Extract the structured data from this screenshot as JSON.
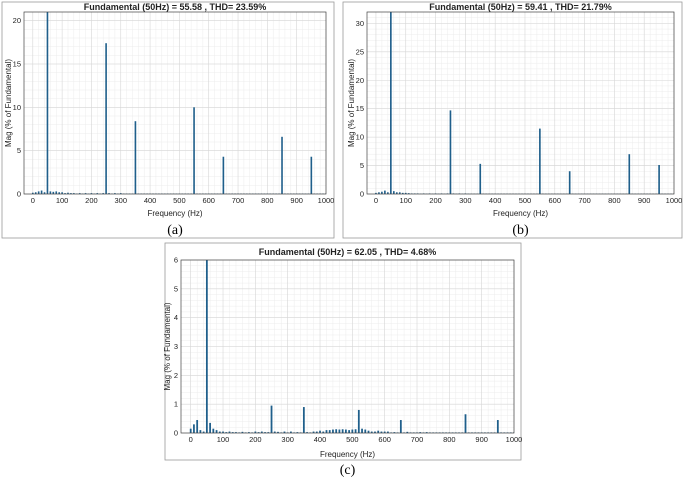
{
  "chart_data": [
    {
      "type": "bar",
      "panel_label": "(a)",
      "title": "Fundamental (50Hz) = 55.58 , THD= 23.59%",
      "xlabel": "Frequency (Hz)",
      "ylabel": "Mag (% of Fundamental)",
      "xlim": [
        -30,
        1000
      ],
      "ylim": [
        0,
        21
      ],
      "xticks": [
        0,
        100,
        200,
        300,
        400,
        500,
        600,
        700,
        800,
        900,
        1000
      ],
      "yticks": [
        0,
        5,
        10,
        15,
        20
      ],
      "grid": true,
      "bar_color": "#1f5f8b",
      "x": [
        0,
        10,
        20,
        30,
        40,
        50,
        60,
        70,
        80,
        90,
        100,
        110,
        120,
        130,
        140,
        150,
        160,
        170,
        180,
        190,
        200,
        210,
        220,
        230,
        240,
        250,
        260,
        270,
        280,
        290,
        300,
        310,
        320,
        330,
        340,
        350,
        360,
        370,
        380,
        390,
        400,
        410,
        420,
        430,
        440,
        450,
        460,
        470,
        480,
        490,
        500,
        510,
        520,
        530,
        540,
        550,
        560,
        570,
        580,
        590,
        600,
        610,
        620,
        630,
        640,
        650,
        660,
        670,
        680,
        690,
        700,
        710,
        720,
        730,
        740,
        750,
        760,
        770,
        780,
        790,
        800,
        810,
        820,
        830,
        840,
        850,
        860,
        870,
        880,
        890,
        900,
        910,
        920,
        930,
        940,
        950,
        960,
        970,
        980,
        990,
        1000
      ],
      "values": [
        0.15,
        0.2,
        0.3,
        0.4,
        0.2,
        21.5,
        0.3,
        0.25,
        0.3,
        0.2,
        0.2,
        0.1,
        0.15,
        0.1,
        0.1,
        0.05,
        0.1,
        0.05,
        0.1,
        0.05,
        0.1,
        0.05,
        0.1,
        0.05,
        0.1,
        17.4,
        0.1,
        0.05,
        0.1,
        0.05,
        0.1,
        0.05,
        0.05,
        0.05,
        0.05,
        8.4,
        0.05,
        0.05,
        0.05,
        0.05,
        0.05,
        0.05,
        0.05,
        0.05,
        0.05,
        0.05,
        0.05,
        0.05,
        0.05,
        0.05,
        0.05,
        0.05,
        0.05,
        0.05,
        0.05,
        10.0,
        0.05,
        0.05,
        0.05,
        0.05,
        0.05,
        0.05,
        0.05,
        0.05,
        0.05,
        4.3,
        0.05,
        0.05,
        0.05,
        0.05,
        0.05,
        0.05,
        0.05,
        0.05,
        0.05,
        0.05,
        0.05,
        0.05,
        0.05,
        0.05,
        0.05,
        0.05,
        0.05,
        0.05,
        0.05,
        6.6,
        0.05,
        0.05,
        0.05,
        0.05,
        0.05,
        0.05,
        0.05,
        0.05,
        0.05,
        4.3,
        0.05,
        0.05,
        0.05,
        0.05,
        0.05
      ]
    },
    {
      "type": "bar",
      "panel_label": "(b)",
      "title": "Fundamental (50Hz) = 59.41 , THD= 21.79%",
      "xlabel": "Frequency (Hz)",
      "ylabel": "Mag (% of Fundamental)",
      "xlim": [
        -30,
        1000
      ],
      "ylim": [
        0,
        32
      ],
      "xticks": [
        0,
        100,
        200,
        300,
        400,
        500,
        600,
        700,
        800,
        900,
        1000
      ],
      "yticks": [
        0,
        5,
        10,
        15,
        20,
        25,
        30
      ],
      "grid": true,
      "bar_color": "#1f5f8b",
      "x": [
        0,
        10,
        20,
        30,
        40,
        50,
        60,
        70,
        80,
        90,
        100,
        110,
        120,
        130,
        140,
        150,
        160,
        170,
        180,
        190,
        200,
        210,
        220,
        230,
        240,
        250,
        260,
        270,
        280,
        290,
        300,
        310,
        320,
        330,
        340,
        350,
        360,
        370,
        380,
        390,
        400,
        410,
        420,
        430,
        440,
        450,
        460,
        470,
        480,
        490,
        500,
        510,
        520,
        530,
        540,
        550,
        560,
        570,
        580,
        590,
        600,
        610,
        620,
        630,
        640,
        650,
        660,
        670,
        680,
        690,
        700,
        710,
        720,
        730,
        740,
        750,
        760,
        770,
        780,
        790,
        800,
        810,
        820,
        830,
        840,
        850,
        860,
        870,
        880,
        890,
        900,
        910,
        920,
        930,
        940,
        950,
        960,
        970,
        980,
        990,
        1000
      ],
      "values": [
        0.2,
        0.3,
        0.4,
        0.6,
        0.3,
        32.5,
        0.5,
        0.3,
        0.3,
        0.2,
        0.2,
        0.15,
        0.1,
        0.1,
        0.1,
        0.05,
        0.1,
        0.05,
        0.1,
        0.05,
        0.1,
        0.05,
        0.1,
        0.05,
        0.1,
        14.7,
        0.1,
        0.05,
        0.1,
        0.05,
        0.1,
        0.05,
        0.05,
        0.05,
        0.05,
        5.3,
        0.05,
        0.05,
        0.05,
        0.05,
        0.05,
        0.05,
        0.05,
        0.05,
        0.05,
        0.05,
        0.05,
        0.05,
        0.05,
        0.05,
        0.05,
        0.05,
        0.05,
        0.05,
        0.05,
        11.5,
        0.05,
        0.05,
        0.05,
        0.05,
        0.05,
        0.05,
        0.05,
        0.05,
        0.05,
        4.0,
        0.05,
        0.05,
        0.05,
        0.05,
        0.05,
        0.05,
        0.05,
        0.05,
        0.05,
        0.05,
        0.05,
        0.05,
        0.05,
        0.05,
        0.05,
        0.05,
        0.05,
        0.05,
        0.05,
        7.0,
        0.05,
        0.05,
        0.05,
        0.05,
        0.05,
        0.05,
        0.05,
        0.05,
        0.05,
        5.1,
        0.05,
        0.05,
        0.05,
        0.05,
        0.05
      ]
    },
    {
      "type": "bar",
      "panel_label": "(c)",
      "title": "Fundamental (50Hz) = 62.05 , THD= 4.68%",
      "xlabel": "Frequency (Hz)",
      "ylabel": "Mag (% of Fundamental)",
      "xlim": [
        -30,
        1000
      ],
      "ylim": [
        0,
        6
      ],
      "xticks": [
        0,
        100,
        200,
        300,
        400,
        500,
        600,
        700,
        800,
        900,
        1000
      ],
      "yticks": [
        0,
        1,
        2,
        3,
        4,
        5,
        6
      ],
      "grid": true,
      "bar_color": "#1f5f8b",
      "x": [
        0,
        10,
        20,
        30,
        40,
        50,
        60,
        70,
        80,
        90,
        100,
        110,
        120,
        130,
        140,
        150,
        160,
        170,
        180,
        190,
        200,
        210,
        220,
        230,
        240,
        250,
        260,
        270,
        280,
        290,
        300,
        310,
        320,
        330,
        340,
        350,
        360,
        370,
        380,
        390,
        400,
        410,
        420,
        430,
        440,
        450,
        460,
        470,
        480,
        490,
        500,
        510,
        520,
        530,
        540,
        550,
        560,
        570,
        580,
        590,
        600,
        610,
        620,
        630,
        640,
        650,
        660,
        670,
        680,
        690,
        700,
        710,
        720,
        730,
        740,
        750,
        760,
        770,
        780,
        790,
        800,
        810,
        820,
        830,
        840,
        850,
        860,
        870,
        880,
        890,
        900,
        910,
        920,
        930,
        940,
        950,
        960,
        970,
        980,
        990,
        1000
      ],
      "values": [
        0.15,
        0.3,
        0.45,
        0.1,
        0.05,
        6.2,
        0.35,
        0.15,
        0.1,
        0.05,
        0.05,
        0.03,
        0.05,
        0.03,
        0.03,
        0.02,
        0.04,
        0.02,
        0.03,
        0.02,
        0.05,
        0.03,
        0.05,
        0.03,
        0.03,
        0.95,
        0.05,
        0.04,
        0.02,
        0.05,
        0.02,
        0.05,
        0.02,
        0.03,
        0.02,
        0.9,
        0.03,
        0.02,
        0.05,
        0.05,
        0.08,
        0.05,
        0.1,
        0.1,
        0.12,
        0.13,
        0.12,
        0.13,
        0.12,
        0.1,
        0.12,
        0.13,
        0.8,
        0.15,
        0.12,
        0.08,
        0.05,
        0.05,
        0.08,
        0.05,
        0.05,
        0.05,
        0.02,
        0.03,
        0.02,
        0.45,
        0.02,
        0.04,
        0.02,
        0.02,
        0.02,
        0.03,
        0.02,
        0.03,
        0.02,
        0.02,
        0.02,
        0.02,
        0.02,
        0.02,
        0.02,
        0.02,
        0.02,
        0.02,
        0.02,
        0.65,
        0.02,
        0.02,
        0.02,
        0.02,
        0.02,
        0.02,
        0.02,
        0.02,
        0.02,
        0.45,
        0.02,
        0.02,
        0.02,
        0.02,
        0.02
      ]
    }
  ]
}
